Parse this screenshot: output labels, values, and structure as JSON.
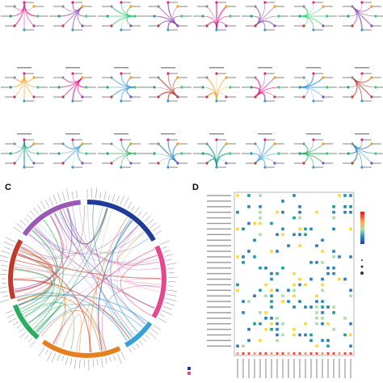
{
  "panels": [
    {
      "label": "C"
    },
    {
      "label": "D"
    }
  ]
}
